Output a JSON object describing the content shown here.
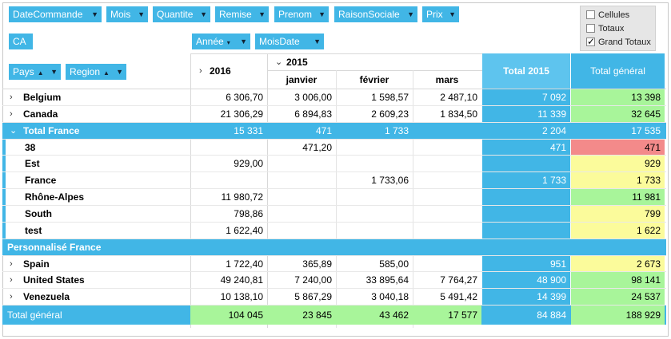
{
  "filter_chips": [
    "DateCommande",
    "Mois",
    "Quantite",
    "Remise",
    "Prenom",
    "RaisonSociale",
    "Prix"
  ],
  "measure_chip": "CA",
  "column_chips": [
    "Année",
    "MoisDate"
  ],
  "row_chips": [
    "Pays",
    "Region"
  ],
  "options": {
    "cellules": "Cellules",
    "totaux": "Totaux",
    "grand_totaux": "Grand Totaux",
    "checked": "Grand Totaux"
  },
  "headers": {
    "year_2016": "2016",
    "year_2015": "2015",
    "months": [
      "janvier",
      "février",
      "mars"
    ],
    "total_2015": "Total 2015",
    "total_general": "Total général"
  },
  "rows": [
    {
      "label": "Belgium",
      "v2016": "6 306,70",
      "jan": "3 006,00",
      "fev": "1 598,57",
      "mar": "2 487,10",
      "t2015": "7 092",
      "tg": "13 398",
      "tg_color": "green"
    },
    {
      "label": "Canada",
      "v2016": "21 306,29",
      "jan": "6 894,83",
      "fev": "2 609,23",
      "mar": "1 834,50",
      "t2015": "11 339",
      "tg": "32 645",
      "tg_color": "green"
    },
    {
      "label": "Total France",
      "v2016": "15 331",
      "jan": "471",
      "fev": "1 733",
      "mar": "",
      "t2015": "2 204",
      "tg": "17 535"
    },
    {
      "label": "38",
      "v2016": "",
      "jan": "471,20",
      "fev": "",
      "mar": "",
      "t2015": "471",
      "tg": "471",
      "tg_color": "red"
    },
    {
      "label": "Est",
      "v2016": "929,00",
      "jan": "",
      "fev": "",
      "mar": "",
      "t2015": "",
      "tg": "929",
      "tg_color": "yellow"
    },
    {
      "label": "France",
      "v2016": "",
      "jan": "",
      "fev": "1 733,06",
      "mar": "",
      "t2015": "1 733",
      "tg": "1 733",
      "tg_color": "yellow"
    },
    {
      "label": "Rhône-Alpes",
      "v2016": "11 980,72",
      "jan": "",
      "fev": "",
      "mar": "",
      "t2015": "",
      "tg": "11 981",
      "tg_color": "green"
    },
    {
      "label": "South",
      "v2016": "798,86",
      "jan": "",
      "fev": "",
      "mar": "",
      "t2015": "",
      "tg": "799",
      "tg_color": "yellow"
    },
    {
      "label": "test",
      "v2016": "1 622,40",
      "jan": "",
      "fev": "",
      "mar": "",
      "t2015": "",
      "tg": "1 622",
      "tg_color": "yellow"
    },
    {
      "label": "Personnalisé France",
      "v2016": "",
      "jan": "",
      "fev": "",
      "mar": "",
      "t2015": "",
      "tg": ""
    },
    {
      "label": "Spain",
      "v2016": "1 722,40",
      "jan": "365,89",
      "fev": "585,00",
      "mar": "",
      "t2015": "951",
      "tg": "2 673",
      "tg_color": "yellow"
    },
    {
      "label": "United States",
      "v2016": "49 240,81",
      "jan": "7 240,00",
      "fev": "33 895,64",
      "mar": "7 764,27",
      "t2015": "48 900",
      "tg": "98 141",
      "tg_color": "green"
    },
    {
      "label": "Venezuela",
      "v2016": "10 138,10",
      "jan": "5 867,29",
      "fev": "3 040,18",
      "mar": "5 491,42",
      "t2015": "14 399",
      "tg": "24 537",
      "tg_color": "green"
    }
  ],
  "grand_total": {
    "label": "Total général",
    "v2016": "104 045",
    "jan": "23 845",
    "fev": "43 462",
    "mar": "17 577",
    "t2015": "84 884",
    "tg": "188 929"
  },
  "colors": {
    "accent": "#41b6e6",
    "green": "#a8f59a",
    "yellow": "#fbfb9b",
    "red": "#f38a8a"
  }
}
